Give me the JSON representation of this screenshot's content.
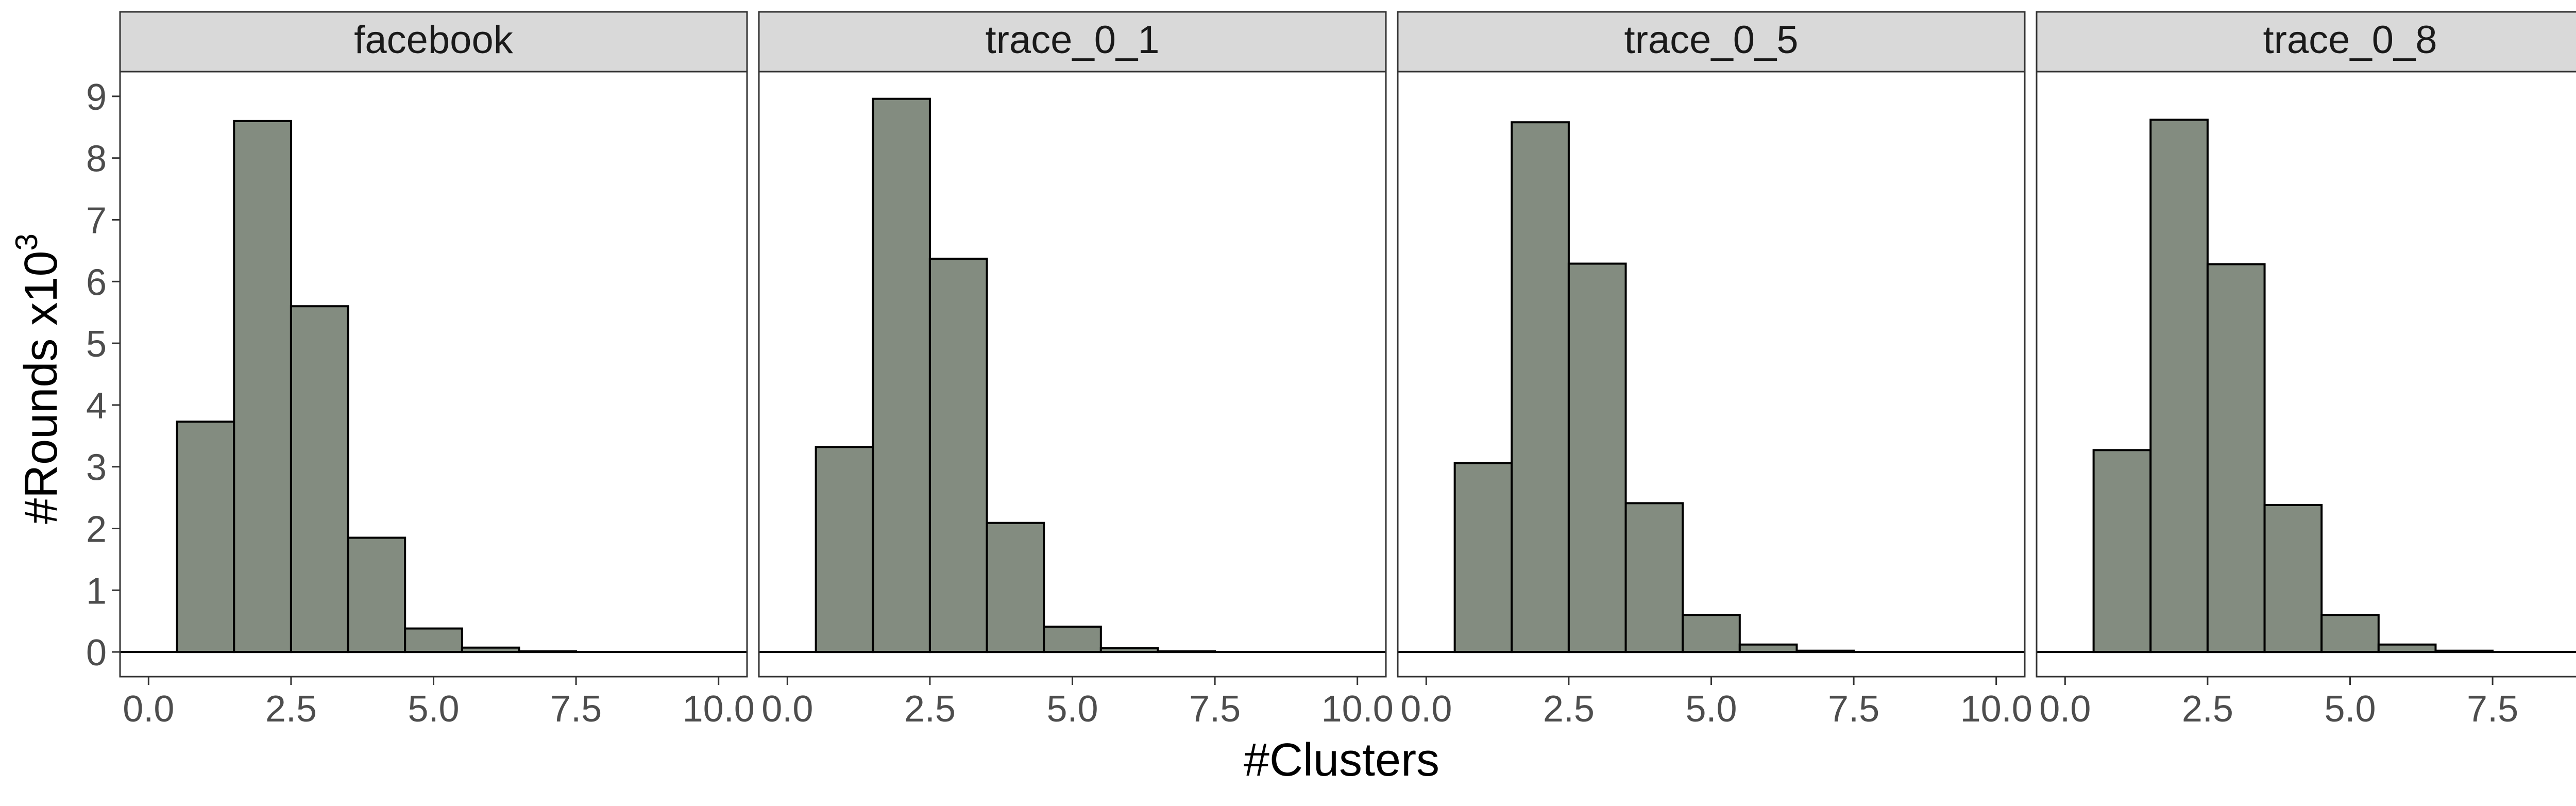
{
  "chart_data": {
    "type": "bar",
    "xlabel": "#Clusters",
    "ylabel_main": "#Rounds x10",
    "ylabel_sup": "3",
    "x_ticks": [
      0.0,
      2.5,
      5.0,
      7.5,
      10.0
    ],
    "x_tick_labels": [
      "0.0",
      "2.5",
      "5.0",
      "7.5",
      "10.0"
    ],
    "y_ticks": [
      0,
      1,
      2,
      3,
      4,
      5,
      6,
      7,
      8,
      9
    ],
    "y_tick_labels": [
      "0",
      "1",
      "2",
      "3",
      "4",
      "5",
      "6",
      "7",
      "8",
      "9"
    ],
    "xlim": [
      -0.5,
      10.5
    ],
    "ylim": [
      -0.4,
      9.4
    ],
    "bin_centers": [
      1,
      2,
      3,
      4,
      5,
      6,
      7,
      8,
      9,
      10
    ],
    "bin_width": 1,
    "bar_color": "#838c80",
    "strip_color": "#d9d9d9",
    "grid": false,
    "panels": [
      {
        "title": "facebook",
        "values": [
          3.73,
          8.6,
          5.6,
          1.85,
          0.38,
          0.07,
          0.01,
          0,
          0,
          0
        ]
      },
      {
        "title": "trace_0_1",
        "values": [
          3.32,
          8.96,
          6.37,
          2.09,
          0.41,
          0.06,
          0.01,
          0,
          0,
          0
        ]
      },
      {
        "title": "trace_0_5",
        "values": [
          3.06,
          8.58,
          6.29,
          2.41,
          0.6,
          0.12,
          0.02,
          0,
          0,
          0
        ]
      },
      {
        "title": "trace_0_8",
        "values": [
          3.27,
          8.62,
          6.28,
          2.38,
          0.6,
          0.12,
          0.02,
          0,
          0,
          0
        ]
      }
    ]
  }
}
